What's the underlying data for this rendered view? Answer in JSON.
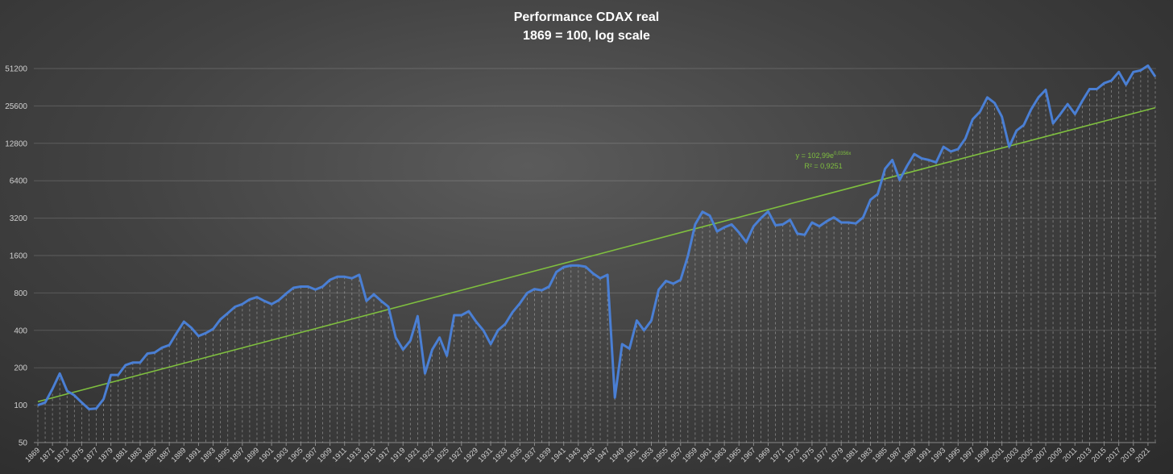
{
  "chart_data": {
    "type": "line",
    "title_line1": "Performance CDAX real",
    "title_line2": "1869 = 100, log scale",
    "xlabel": "",
    "ylabel": "",
    "y_scale": "log2",
    "ylim": [
      50,
      51200
    ],
    "y_ticks": [
      50,
      100,
      200,
      400,
      800,
      1600,
      3200,
      6400,
      12800,
      25600,
      51200
    ],
    "x_range": [
      1869,
      2022
    ],
    "x_tick_labels": [
      1869,
      1871,
      1873,
      1875,
      1877,
      1879,
      1881,
      1883,
      1885,
      1887,
      1889,
      1891,
      1893,
      1895,
      1897,
      1899,
      1901,
      1903,
      1905,
      1907,
      1909,
      1911,
      1913,
      1915,
      1917,
      1919,
      1921,
      1923,
      1925,
      1927,
      1929,
      1931,
      1933,
      1935,
      1937,
      1939,
      1941,
      1943,
      1945,
      1947,
      1949,
      1951,
      1953,
      1955,
      1957,
      1959,
      1961,
      1963,
      1965,
      1967,
      1969,
      1971,
      1973,
      1975,
      1977,
      1979,
      1981,
      1983,
      1985,
      1987,
      1989,
      1991,
      1993,
      1995,
      1997,
      1999,
      2001,
      2003,
      2005,
      2007,
      2009,
      2011,
      2013,
      2015,
      2017,
      2019,
      2021
    ],
    "grid": true,
    "drop_lines": true,
    "series": [
      {
        "name": "",
        "color": "#4a7fd4",
        "x": [
          1869,
          1870,
          1871,
          1872,
          1873,
          1874,
          1875,
          1876,
          1877,
          1878,
          1879,
          1880,
          1881,
          1882,
          1883,
          1884,
          1885,
          1886,
          1887,
          1888,
          1889,
          1890,
          1891,
          1892,
          1893,
          1894,
          1895,
          1896,
          1897,
          1898,
          1899,
          1900,
          1901,
          1902,
          1903,
          1904,
          1905,
          1906,
          1907,
          1908,
          1909,
          1910,
          1911,
          1912,
          1913,
          1914,
          1915,
          1916,
          1917,
          1918,
          1919,
          1920,
          1921,
          1922,
          1923,
          1924,
          1925,
          1926,
          1927,
          1928,
          1929,
          1930,
          1931,
          1932,
          1933,
          1934,
          1935,
          1936,
          1937,
          1938,
          1939,
          1940,
          1941,
          1942,
          1943,
          1944,
          1945,
          1946,
          1947,
          1948,
          1949,
          1950,
          1951,
          1952,
          1953,
          1954,
          1955,
          1956,
          1957,
          1958,
          1959,
          1960,
          1961,
          1962,
          1963,
          1964,
          1965,
          1966,
          1967,
          1968,
          1969,
          1970,
          1971,
          1972,
          1973,
          1974,
          1975,
          1976,
          1977,
          1978,
          1979,
          1980,
          1981,
          1982,
          1983,
          1984,
          1985,
          1986,
          1987,
          1988,
          1989,
          1990,
          1991,
          1992,
          1993,
          1994,
          1995,
          1996,
          1997,
          1998,
          1999,
          2000,
          2001,
          2002,
          2003,
          2004,
          2005,
          2006,
          2007,
          2008,
          2009,
          2010,
          2011,
          2012,
          2013,
          2014,
          2015,
          2016,
          2017,
          2018,
          2019,
          2020,
          2021,
          2022
        ],
        "values": [
          100,
          105,
          135,
          180,
          130,
          120,
          105,
          93,
          94,
          112,
          175,
          175,
          210,
          220,
          220,
          260,
          265,
          290,
          305,
          380,
          470,
          420,
          360,
          380,
          410,
          490,
          550,
          620,
          650,
          710,
          740,
          690,
          650,
          700,
          790,
          880,
          900,
          900,
          850,
          900,
          1020,
          1080,
          1080,
          1050,
          1120,
          690,
          780,
          690,
          620,
          350,
          280,
          330,
          520,
          180,
          280,
          350,
          250,
          530,
          530,
          570,
          470,
          400,
          310,
          400,
          450,
          560,
          660,
          800,
          860,
          840,
          900,
          1180,
          1290,
          1330,
          1330,
          1300,
          1150,
          1050,
          1120,
          115,
          310,
          285,
          480,
          400,
          480,
          850,
          1000,
          950,
          1020,
          1580,
          2850,
          3600,
          3350,
          2500,
          2700,
          2850,
          2450,
          2050,
          2750,
          3200,
          3620,
          2800,
          2850,
          3100,
          2400,
          2350,
          2950,
          2750,
          3020,
          3250,
          2950,
          2950,
          2900,
          3250,
          4500,
          5000,
          8000,
          9400,
          6500,
          8400,
          10500,
          9700,
          9400,
          9000,
          12000,
          11000,
          11500,
          14000,
          20000,
          23000,
          30000,
          27000,
          21000,
          12000,
          16200,
          18000,
          24000,
          30000,
          34500,
          18500,
          22000,
          26500,
          22000,
          28000,
          35000,
          35000,
          39000,
          41000,
          48000,
          38000,
          48000,
          49500,
          54000,
          44000
        ]
      }
    ],
    "trendline": {
      "color": "#7fbf3f",
      "equation_text": "y = 102,99e",
      "equation_exp": "0,0356x",
      "r2_text": "R² = 0,9251",
      "a": 102.99,
      "b": 0.0356
    }
  }
}
